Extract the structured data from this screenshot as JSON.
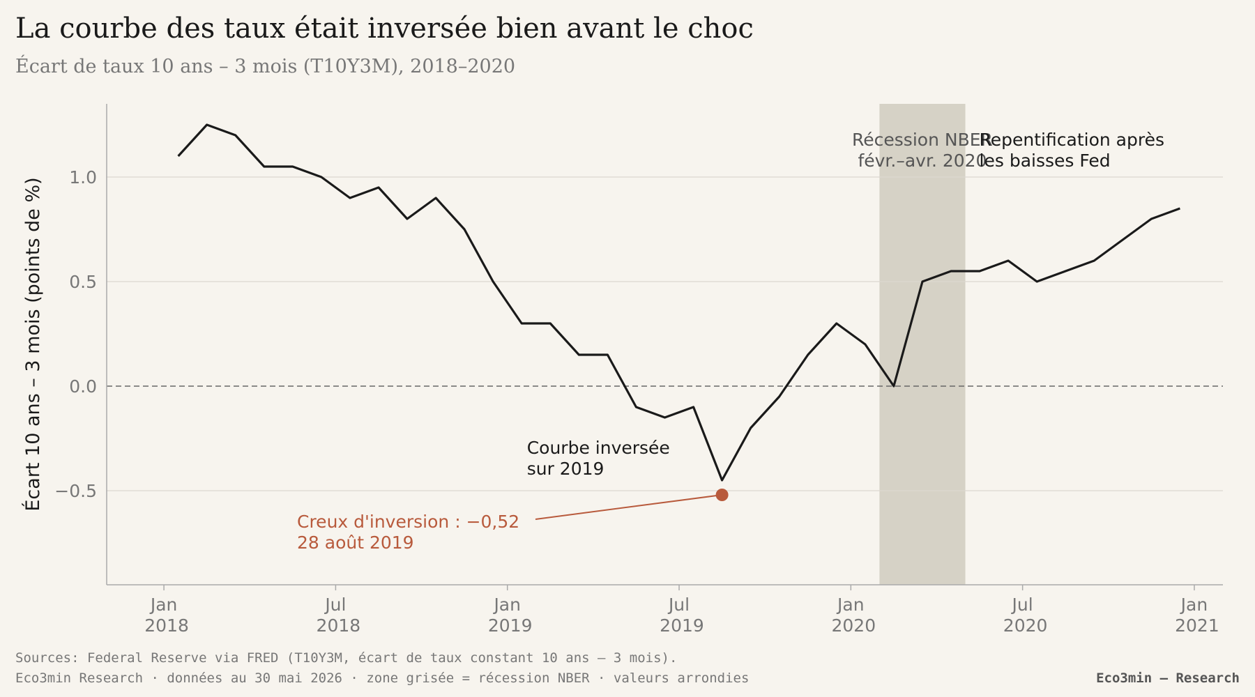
{
  "chart_data": {
    "type": "line",
    "title": "La courbe des taux était inversée bien avant le choc",
    "subtitle": "Écart de taux 10 ans – 3 mois (T10Y3M), 2018–2020",
    "y_label": "Écart 10 ans – 3 mois (points de %)",
    "x": [
      "2018-01",
      "2018-02",
      "2018-03",
      "2018-04",
      "2018-05",
      "2018-06",
      "2018-07",
      "2018-08",
      "2018-09",
      "2018-10",
      "2018-11",
      "2018-12",
      "2019-01",
      "2019-02",
      "2019-03",
      "2019-04",
      "2019-05",
      "2019-06",
      "2019-07",
      "2019-08",
      "2019-09",
      "2019-10",
      "2019-11",
      "2019-12",
      "2020-01",
      "2020-02",
      "2020-03",
      "2020-04",
      "2020-05",
      "2020-06",
      "2020-07",
      "2020-08",
      "2020-09",
      "2020-10",
      "2020-11",
      "2020-12"
    ],
    "series": [
      {
        "name": "T10Y3M",
        "color": "#1a1a1a",
        "values": [
          1.1,
          1.25,
          1.2,
          1.05,
          1.05,
          1.0,
          0.9,
          0.95,
          0.8,
          0.9,
          0.75,
          0.5,
          0.3,
          0.3,
          0.15,
          0.15,
          -0.1,
          -0.15,
          -0.1,
          -0.45,
          -0.2,
          -0.05,
          0.15,
          0.3,
          0.2,
          0.0,
          0.5,
          0.55,
          0.55,
          0.6,
          0.5,
          0.55,
          0.6,
          0.7,
          0.8,
          0.85
        ]
      }
    ],
    "xlim": [
      "2017-11",
      "2021-02"
    ],
    "xticks": [
      {
        "value": "2018-01",
        "label": "Jan 2018"
      },
      {
        "value": "2018-07",
        "label": "Jul 2018"
      },
      {
        "value": "2019-01",
        "label": "Jan 2019"
      },
      {
        "value": "2019-07",
        "label": "Jul 2019"
      },
      {
        "value": "2020-01",
        "label": "Jan 2020"
      },
      {
        "value": "2020-07",
        "label": "Jul 2020"
      },
      {
        "value": "2021-01",
        "label": "Jan 2021"
      }
    ],
    "ylim": [
      -0.95,
      1.35
    ],
    "yticks": [
      {
        "value": -0.5,
        "label": "−0.5"
      },
      {
        "value": 0,
        "label": "0.0"
      },
      0.5,
      {
        "value": 1,
        "label": "1.0"
      }
    ],
    "grid": true,
    "recession": {
      "start": "2020-02",
      "end": "2020-04",
      "color": "#d6d2c6",
      "label": [
        "Récession NBER",
        "févr.–avr. 2020"
      ]
    },
    "trough": {
      "x": "2019-08",
      "value": -0.52,
      "color": "#b85a3c",
      "label": [
        "Creux d'inversion : −0,52",
        "28 août 2019"
      ]
    },
    "annotations": [
      {
        "x": "2020-05",
        "label": [
          "Repentification après",
          "les baisses Fed"
        ]
      },
      {
        "x": "2019-01",
        "label": [
          "Courbe inversée",
          "sur 2019"
        ]
      }
    ],
    "footer": [
      "Sources: Federal Reserve via FRED (T10Y3M, écart de taux constant 10 ans – 3 mois).",
      "Eco3min Research · données au 30 mai 2026 · zone grisée = récession NBER · valeurs arrondies"
    ],
    "brand": "Eco3min — Research"
  }
}
